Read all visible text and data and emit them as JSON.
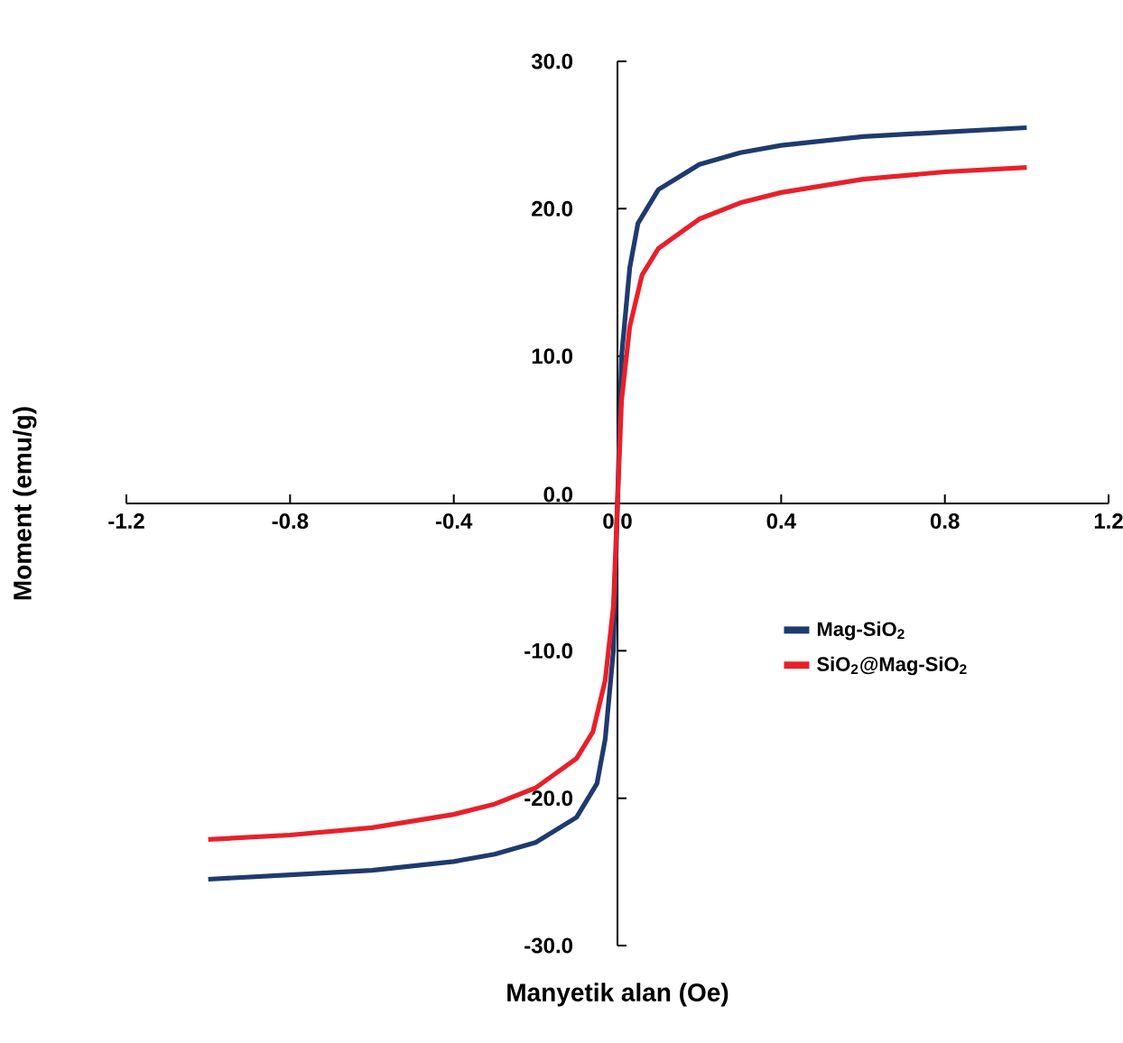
{
  "chart_data": {
    "type": "line",
    "xlabel": "Manyetik alan (Oe)",
    "ylabel": "Moment (emu/g)",
    "xlim": [
      -1.2,
      1.2
    ],
    "ylim": [
      -30,
      30
    ],
    "xticks": [
      -1.2,
      -0.8,
      -0.4,
      {
        "value": 0,
        "label": "0.0"
      },
      0.4,
      0.8,
      1.2
    ],
    "yticks": [
      {
        "value": -30,
        "label": "-30.0"
      },
      {
        "value": -20,
        "label": "-20.0"
      },
      {
        "value": -10,
        "label": "-10.0"
      },
      {
        "value": 0,
        "label": "0.0"
      },
      {
        "value": 10,
        "label": "10.0"
      },
      {
        "value": 20,
        "label": "20.0"
      },
      {
        "value": 30,
        "label": "30.0"
      }
    ],
    "legend": "right",
    "grid": false,
    "marker": "none",
    "line_style": "solid",
    "series": [
      {
        "name": "Mag-SiO$_{2}$",
        "color": "#1f3a6e",
        "x": [
          -1.0,
          -0.8,
          -0.6,
          -0.4,
          -0.3,
          -0.2,
          -0.1,
          -0.05,
          -0.03,
          -0.01,
          0.0,
          0.01,
          0.03,
          0.05,
          0.1,
          0.2,
          0.3,
          0.4,
          0.6,
          0.8,
          1.0
        ],
        "values": [
          -25.5,
          -25.2,
          -24.9,
          -24.3,
          -23.8,
          -23.0,
          -21.3,
          -19.0,
          -16.0,
          -10.0,
          0.0,
          10.0,
          16.0,
          19.0,
          21.3,
          23.0,
          23.8,
          24.3,
          24.9,
          25.2,
          25.5
        ]
      },
      {
        "name": "SiO$_{2}$@Mag-SiO$_{2}$",
        "color": "#e8202a",
        "x": [
          -1.0,
          -0.8,
          -0.6,
          -0.4,
          -0.3,
          -0.2,
          -0.1,
          -0.06,
          -0.03,
          -0.01,
          0.0,
          0.01,
          0.03,
          0.06,
          0.1,
          0.2,
          0.3,
          0.4,
          0.6,
          0.8,
          1.0
        ],
        "values": [
          -22.8,
          -22.5,
          -22.0,
          -21.1,
          -20.4,
          -19.3,
          -17.3,
          -15.5,
          -12.0,
          -7.0,
          0.0,
          7.0,
          12.0,
          15.5,
          17.3,
          19.3,
          20.4,
          21.1,
          22.0,
          22.5,
          22.8
        ]
      }
    ]
  }
}
